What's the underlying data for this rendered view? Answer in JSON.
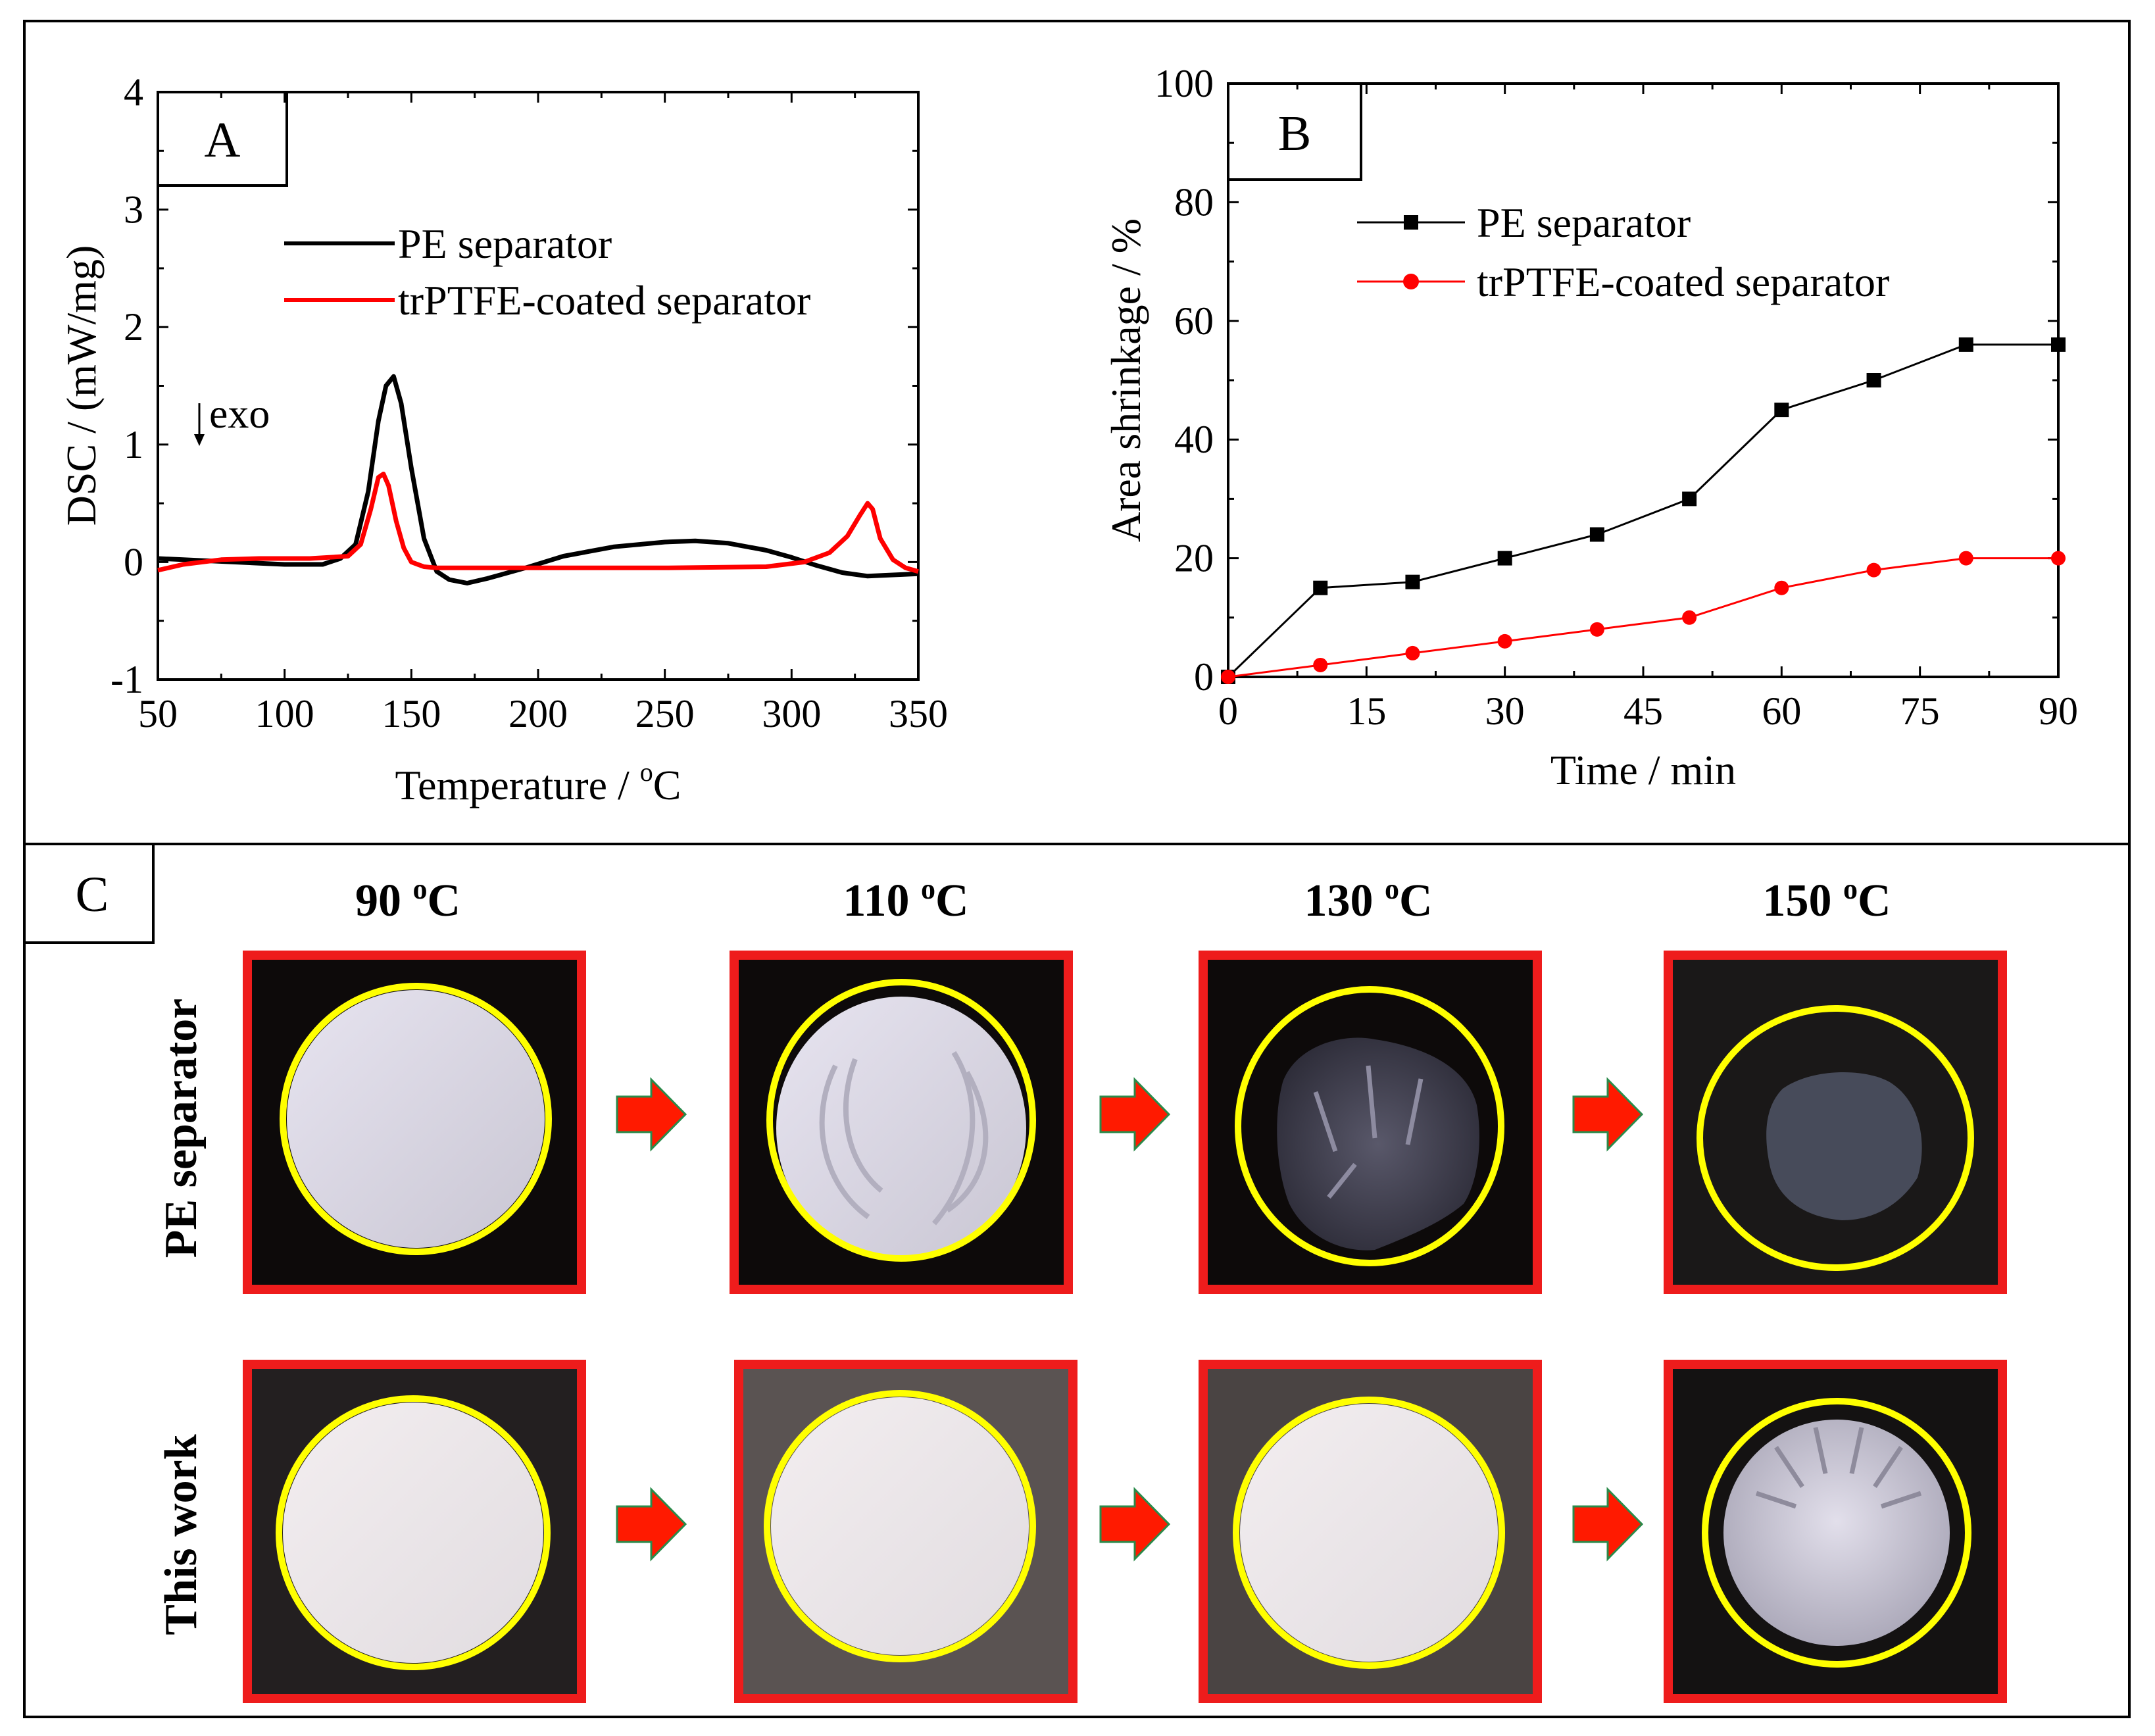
{
  "panelA": {
    "tag": "A",
    "xlabel": "Temperature / ",
    "xlabel_unit_sup": "o",
    "xlabel_unit": "C",
    "ylabel": "DSC / (mW/mg)",
    "annotation": "exo",
    "xticks": [
      "50",
      "100",
      "150",
      "200",
      "250",
      "300",
      "350"
    ],
    "yticks": [
      "-1",
      "0",
      "1",
      "2",
      "3",
      "4"
    ],
    "legend": [
      "PE separator",
      "trPTFE-coated separator"
    ]
  },
  "panelB": {
    "tag": "B",
    "xlabel": "Time / min",
    "ylabel": "Area shrinkage / %",
    "xticks": [
      "0",
      "15",
      "30",
      "45",
      "60",
      "75",
      "90"
    ],
    "yticks": [
      "0",
      "20",
      "40",
      "60",
      "80",
      "100"
    ],
    "legend": [
      "PE separator",
      "trPTFE-coated separator"
    ]
  },
  "panelC": {
    "tag": "C",
    "columns": [
      {
        "num": "90 ",
        "sup": "o",
        "unit": "C"
      },
      {
        "num": "110 ",
        "sup": "o",
        "unit": "C"
      },
      {
        "num": "130 ",
        "sup": "o",
        "unit": "C"
      },
      {
        "num": "150 ",
        "sup": "o",
        "unit": "C"
      }
    ],
    "rows": [
      "PE separator",
      "This work"
    ]
  },
  "colors": {
    "pe": "#000000",
    "coated": "#ff0000",
    "frame": "#ee1c1c",
    "ring": "#ffff00",
    "arrow": "#ff1a00"
  },
  "chart_data": [
    {
      "type": "line",
      "xlabel": "Temperature / °C",
      "ylabel": "DSC / (mW/mg)",
      "xlim": [
        50,
        350
      ],
      "ylim": [
        -1,
        4
      ],
      "series": [
        {
          "name": "PE separator",
          "color": "#000000",
          "x": [
            50,
            60,
            80,
            100,
            115,
            122,
            128,
            133,
            137,
            140,
            143,
            146,
            150,
            155,
            160,
            165,
            172,
            180,
            195,
            210,
            230,
            250,
            262,
            275,
            290,
            300,
            310,
            320,
            330,
            340,
            350
          ],
          "y": [
            0.03,
            0.02,
            0.0,
            -0.02,
            -0.02,
            0.03,
            0.15,
            0.6,
            1.2,
            1.5,
            1.58,
            1.35,
            0.8,
            0.2,
            -0.08,
            -0.15,
            -0.18,
            -0.14,
            -0.05,
            0.05,
            0.13,
            0.17,
            0.18,
            0.16,
            0.1,
            0.04,
            -0.03,
            -0.09,
            -0.12,
            -0.11,
            -0.1
          ]
        },
        {
          "name": "trPTFE-coated separator",
          "color": "#ff0000",
          "x": [
            50,
            60,
            75,
            90,
            110,
            125,
            130,
            134,
            137,
            139,
            141,
            144,
            147,
            150,
            155,
            160,
            170,
            200,
            250,
            290,
            305,
            315,
            322,
            327,
            330,
            332,
            335,
            340,
            345,
            350
          ],
          "y": [
            -0.07,
            -0.02,
            0.02,
            0.03,
            0.03,
            0.05,
            0.15,
            0.45,
            0.72,
            0.75,
            0.65,
            0.35,
            0.12,
            0.0,
            -0.04,
            -0.05,
            -0.05,
            -0.05,
            -0.05,
            -0.04,
            0.0,
            0.08,
            0.22,
            0.4,
            0.5,
            0.45,
            0.2,
            0.02,
            -0.05,
            -0.08
          ]
        }
      ],
      "annotation": "exo"
    },
    {
      "type": "line",
      "xlabel": "Time / min",
      "ylabel": "Area shrinkage / %",
      "xlim": [
        0,
        90
      ],
      "ylim": [
        0,
        100
      ],
      "series": [
        {
          "name": "PE separator",
          "color": "#000000",
          "marker": "square",
          "x": [
            0,
            10,
            20,
            30,
            40,
            50,
            60,
            70,
            80,
            90
          ],
          "y": [
            0,
            15,
            16,
            20,
            24,
            30,
            45,
            50,
            56,
            56
          ]
        },
        {
          "name": "trPTFE-coated separator",
          "color": "#ff0000",
          "marker": "circle",
          "x": [
            0,
            10,
            20,
            30,
            40,
            50,
            60,
            70,
            80,
            90
          ],
          "y": [
            0,
            2,
            4,
            6,
            8,
            10,
            15,
            18,
            20,
            20
          ]
        }
      ]
    }
  ]
}
